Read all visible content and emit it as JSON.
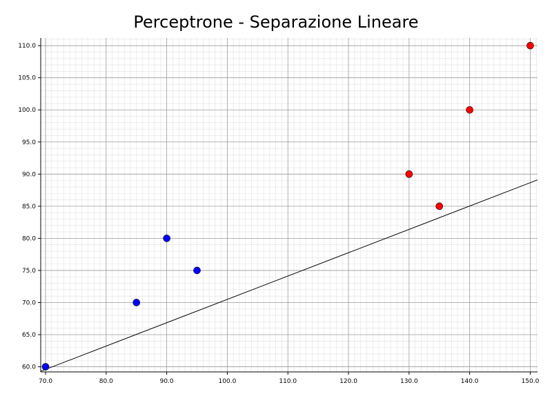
{
  "chart_data": {
    "type": "scatter",
    "title": "Perceptrone - Separazione Lineare",
    "xlabel": "",
    "ylabel": "",
    "xlim": [
      69.2,
      151.2
    ],
    "ylim": [
      59.2,
      111.2
    ],
    "x_ticks": [
      "70.0",
      "80.0",
      "90.0",
      "100.0",
      "110.0",
      "120.0",
      "130.0",
      "140.0",
      "150.0"
    ],
    "y_ticks": [
      "60.0",
      "65.0",
      "70.0",
      "75.0",
      "80.0",
      "85.0",
      "90.0",
      "95.0",
      "100.0",
      "105.0",
      "110.0"
    ],
    "grid": true,
    "series": [
      {
        "color": "#0000ff",
        "points": [
          [
            70,
            60
          ],
          [
            85,
            70
          ],
          [
            90,
            80
          ],
          [
            95,
            75
          ]
        ]
      },
      {
        "color": "#ff0000",
        "points": [
          [
            130,
            90
          ],
          [
            135,
            85
          ],
          [
            140,
            100
          ],
          [
            150,
            110
          ]
        ]
      }
    ],
    "decision_line": {
      "color": "#000000",
      "points": [
        [
          69.2,
          59.3
        ],
        [
          151.2,
          89.1
        ]
      ]
    }
  }
}
